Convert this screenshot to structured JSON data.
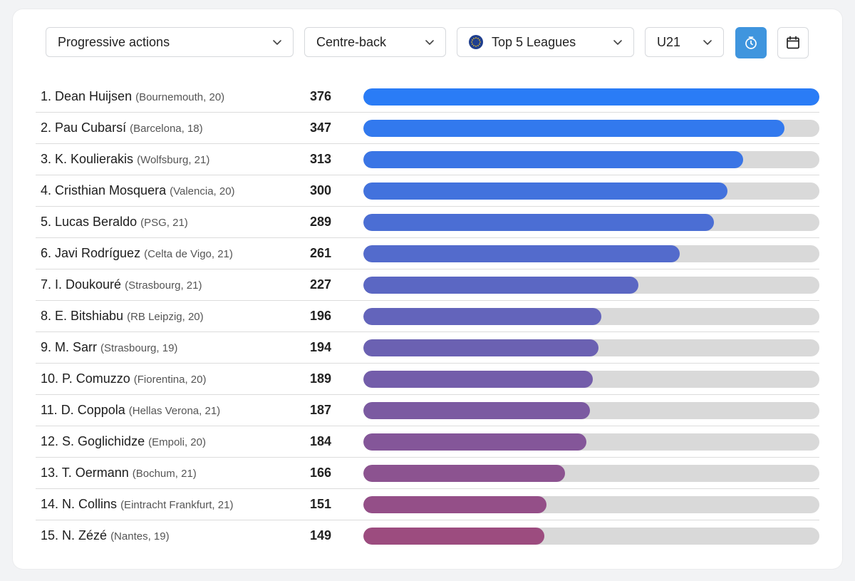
{
  "filters": {
    "metric": "Progressive actions",
    "position": "Centre-back",
    "competition": "Top 5 Leagues",
    "age_group": "U21"
  },
  "icons": {
    "chevron": "chevron-down-icon",
    "competition": "eu-globe-icon",
    "per90_toggle": "stopwatch-icon",
    "season": "calendar-icon"
  },
  "colors": {
    "bar_start": "#2a7cf6",
    "bar_end": "#9c4c7f",
    "track": "#d9d9d9",
    "active_button": "#3f95de"
  },
  "chart_data": {
    "type": "bar",
    "orientation": "horizontal",
    "xlim": [
      0,
      376
    ],
    "rows": [
      {
        "label": "1. Dean Huijsen",
        "meta": "(Bournemouth, 20)",
        "value": 376
      },
      {
        "label": "2. Pau Cubarsí",
        "meta": "(Barcelona, 18)",
        "value": 347
      },
      {
        "label": "3. K. Koulierakis",
        "meta": "(Wolfsburg, 21)",
        "value": 313
      },
      {
        "label": "4. Cristhian Mosquera",
        "meta": "(Valencia, 20)",
        "value": 300
      },
      {
        "label": "5. Lucas Beraldo",
        "meta": "(PSG, 21)",
        "value": 289
      },
      {
        "label": "6. Javi Rodríguez",
        "meta": "(Celta de Vigo, 21)",
        "value": 261
      },
      {
        "label": "7. I. Doukouré",
        "meta": "(Strasbourg, 21)",
        "value": 227
      },
      {
        "label": "8. E. Bitshiabu",
        "meta": "(RB Leipzig, 20)",
        "value": 196
      },
      {
        "label": "9. M. Sarr",
        "meta": "(Strasbourg, 19)",
        "value": 194
      },
      {
        "label": "10. P. Comuzzo",
        "meta": "(Fiorentina, 20)",
        "value": 189
      },
      {
        "label": "11. D. Coppola",
        "meta": "(Hellas Verona, 21)",
        "value": 187
      },
      {
        "label": "12. S. Goglichidze",
        "meta": "(Empoli, 20)",
        "value": 184
      },
      {
        "label": "13. T. Oermann",
        "meta": "(Bochum, 21)",
        "value": 166
      },
      {
        "label": "14. N. Collins",
        "meta": "(Eintracht Frankfurt, 21)",
        "value": 151
      },
      {
        "label": "15. N. Zézé",
        "meta": "(Nantes, 19)",
        "value": 149
      }
    ]
  }
}
